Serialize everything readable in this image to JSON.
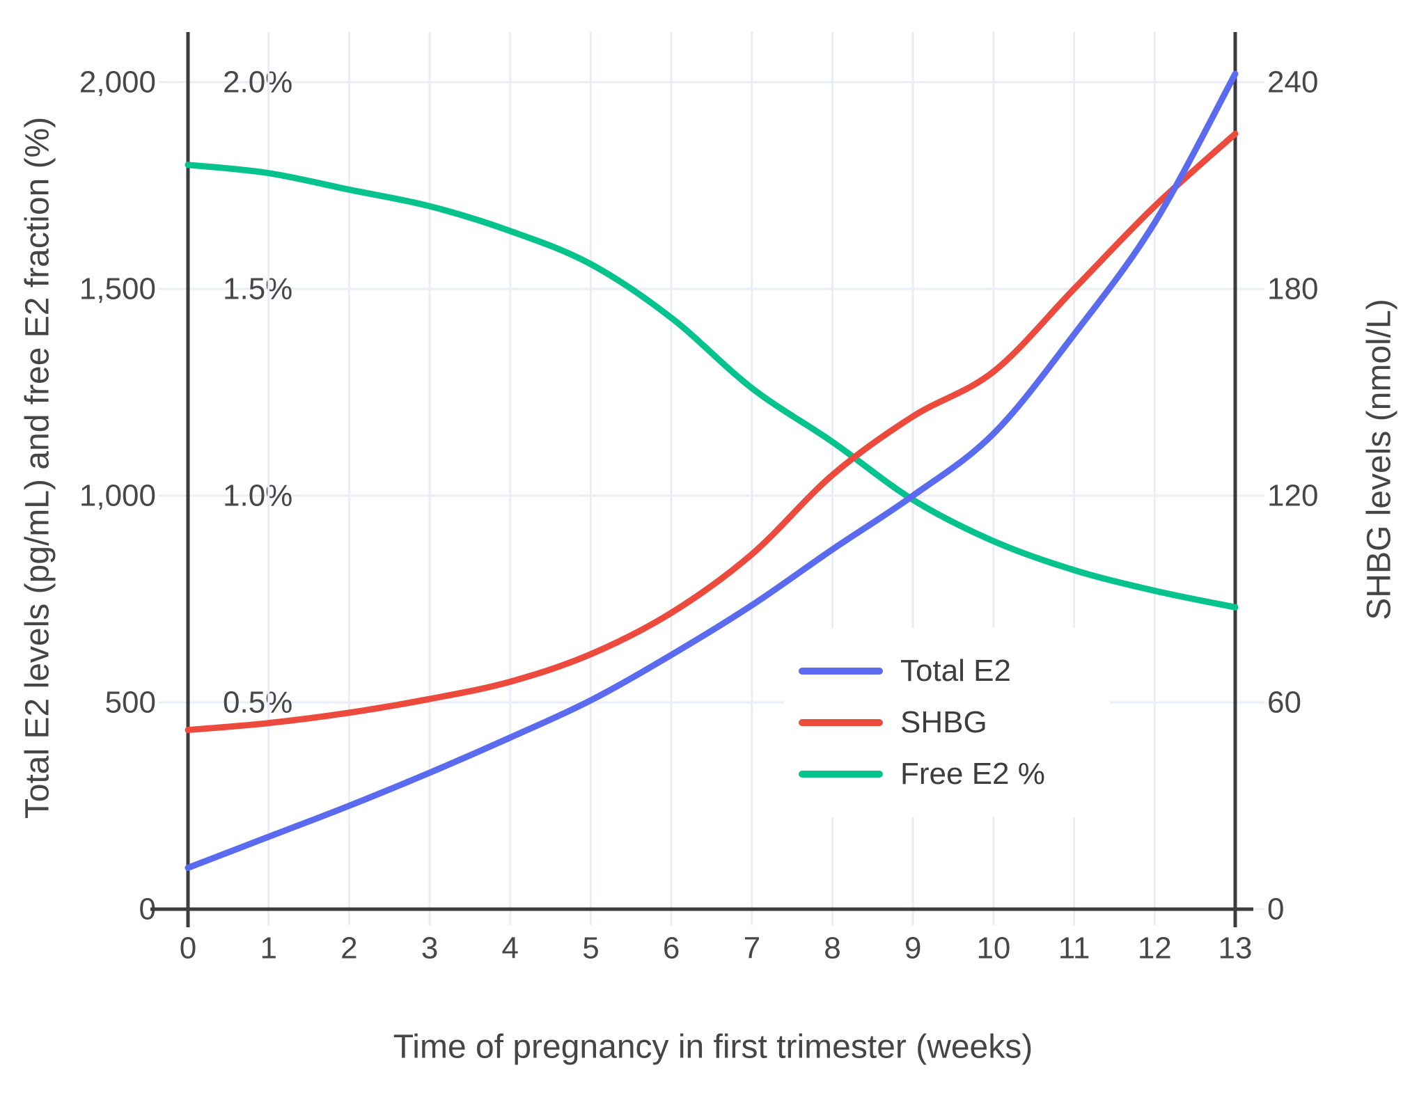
{
  "chart_data": {
    "type": "line",
    "title": "",
    "xlabel": "Time of pregnancy in first trimester (weeks)",
    "ylabel_left": "Total E2 levels (pg/mL) and free E2 fraction (%)",
    "ylabel_right": "SHBG levels (nmol/L)",
    "x": [
      0,
      1,
      2,
      3,
      4,
      5,
      6,
      7,
      8,
      9,
      10,
      11,
      12,
      13
    ],
    "x_tick_labels": [
      "0",
      "1",
      "2",
      "3",
      "4",
      "5",
      "6",
      "7",
      "8",
      "9",
      "10",
      "11",
      "12",
      "13"
    ],
    "left_ticks": [
      {
        "value": 0,
        "label": "0"
      },
      {
        "value": 500,
        "label": "500"
      },
      {
        "value": 1000,
        "label": "1,000"
      },
      {
        "value": 1500,
        "label": "1,500"
      },
      {
        "value": 2000,
        "label": "2,000"
      }
    ],
    "left_percent_ticks": [
      {
        "value": 500,
        "label": "0.5%"
      },
      {
        "value": 1000,
        "label": "1.0%"
      },
      {
        "value": 1500,
        "label": "1.5%"
      },
      {
        "value": 2000,
        "label": "2.0%"
      }
    ],
    "right_ticks": [
      {
        "value": 0,
        "label": "0"
      },
      {
        "value": 60,
        "label": "60"
      },
      {
        "value": 120,
        "label": "120"
      },
      {
        "value": 180,
        "label": "180"
      },
      {
        "value": 240,
        "label": "240"
      }
    ],
    "ylim_left": [
      0,
      2120
    ],
    "ylim_right": [
      0,
      254
    ],
    "xlim": [
      0,
      13
    ],
    "grid": true,
    "legend_position": "inside-right-middle",
    "series": [
      {
        "name": "Total E2",
        "axis": "left",
        "unit": "pg/mL",
        "color": "#5a6bf0",
        "values": [
          100,
          175,
          250,
          330,
          415,
          505,
          615,
          735,
          870,
          1000,
          1150,
          1390,
          1660,
          2020
        ]
      },
      {
        "name": "SHBG",
        "axis": "right",
        "unit": "nmol/L",
        "color": "#eb4a3d",
        "values": [
          52,
          54,
          57,
          61,
          66,
          74,
          86,
          103,
          126,
          143,
          156,
          180,
          204,
          225
        ]
      },
      {
        "name": "Free E2 %",
        "axis": "left-percent",
        "unit": "%",
        "plot_note": "percent values align with left axis: 0.5% = 500",
        "color": "#06c28c",
        "values": [
          1.8,
          1.78,
          1.74,
          1.7,
          1.64,
          1.56,
          1.43,
          1.26,
          1.13,
          0.99,
          0.89,
          0.82,
          0.77,
          0.73
        ]
      }
    ],
    "colors": {
      "grid": "#e9edf8",
      "axis": "#3c3c3e",
      "tick_text": "#47474a",
      "background": "#ffffff"
    }
  }
}
